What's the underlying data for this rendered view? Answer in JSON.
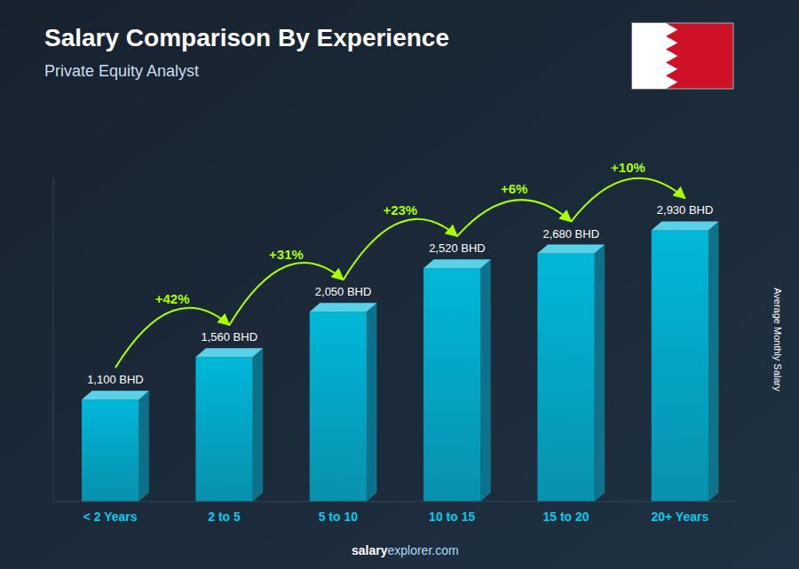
{
  "chart_data": {
    "type": "bar",
    "title": "Salary Comparison By Experience",
    "subtitle": "Private Equity Analyst",
    "ylabel": "Average Monthly Salary",
    "categories": [
      "< 2 Years",
      "2 to 5",
      "5 to 10",
      "10 to 15",
      "15 to 20",
      "20+ Years"
    ],
    "values": [
      1100,
      1560,
      2050,
      2520,
      2680,
      2930
    ],
    "value_labels": [
      "1,100 BHD",
      "1,560 BHD",
      "2,050 BHD",
      "2,520 BHD",
      "2,680 BHD",
      "2,930 BHD"
    ],
    "annotations": [
      "+42%",
      "+31%",
      "+23%",
      "+6%",
      "+10%"
    ],
    "footer": [
      "salary",
      "explorer.com"
    ],
    "color": "#00b8d9",
    "ylim": [
      0,
      3500
    ],
    "data_labels": true,
    "tick_labels": "x",
    "grid": false
  }
}
